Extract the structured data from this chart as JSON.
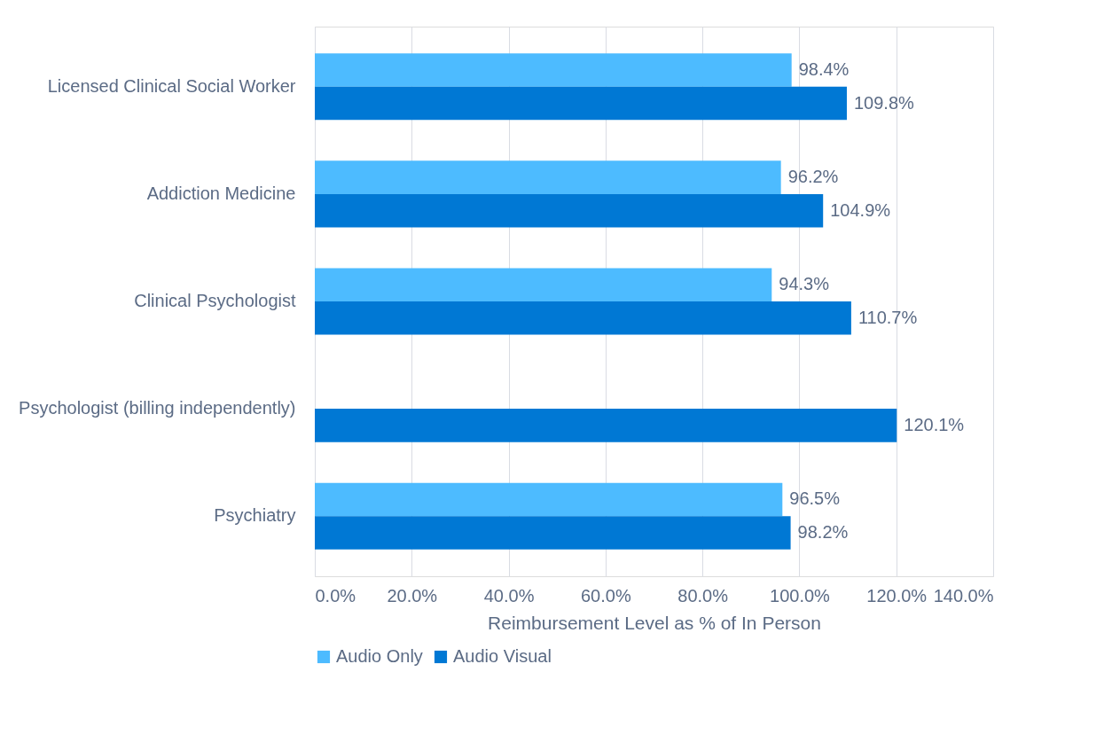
{
  "chart_data": {
    "type": "bar",
    "orientation": "horizontal",
    "categories": [
      "Licensed Clinical Social Worker",
      "Addiction Medicine",
      "Clinical Psychologist",
      "Psychologist (billing independently)",
      "Psychiatry"
    ],
    "series": [
      {
        "name": "Audio Only",
        "color": "#4dbbff",
        "values": [
          98.4,
          96.2,
          94.3,
          null,
          96.5
        ],
        "value_labels": [
          "98.4%",
          "96.2%",
          "94.3%",
          null,
          "96.5%"
        ]
      },
      {
        "name": "Audio Visual",
        "color": "#0078d4",
        "values": [
          109.8,
          104.9,
          110.7,
          120.1,
          98.2
        ],
        "value_labels": [
          "109.8%",
          "104.9%",
          "110.7%",
          "120.1%",
          "98.2%"
        ]
      }
    ],
    "xlabel": "Reimbursement Level as % of In Person",
    "xlim": [
      0,
      140
    ],
    "xticks": [
      {
        "value": 0,
        "label": "0.0%"
      },
      {
        "value": 20,
        "label": "20.0%"
      },
      {
        "value": 40,
        "label": "40.0%"
      },
      {
        "value": 60,
        "label": "60.0%"
      },
      {
        "value": 80,
        "label": "80.0%"
      },
      {
        "value": 100,
        "label": "100.0%"
      },
      {
        "value": 120,
        "label": "120.0%"
      },
      {
        "value": 140,
        "label": "140.0%"
      }
    ],
    "grid": "x",
    "legend": "bottom"
  }
}
